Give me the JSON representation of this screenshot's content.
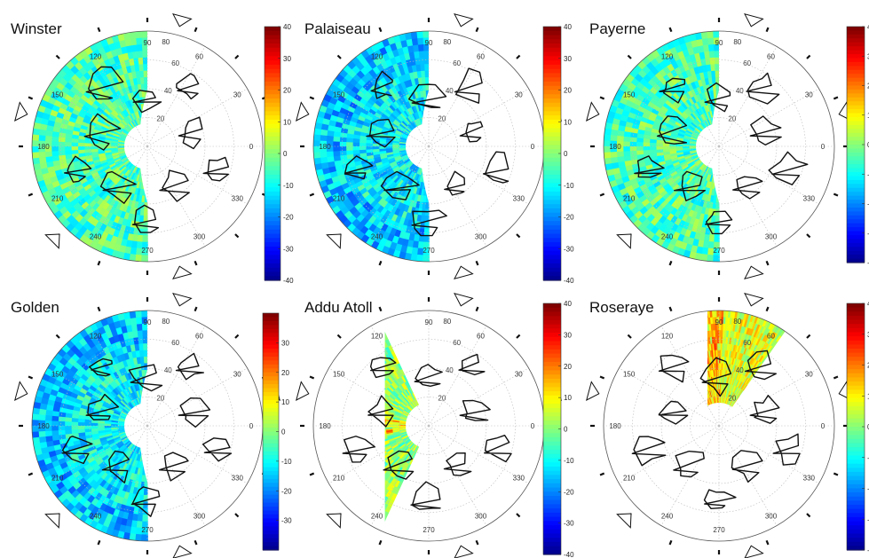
{
  "chart_data": [
    {
      "type": "heatmap",
      "title": "Winster",
      "colorbar": {
        "range": [
          -40,
          40
        ],
        "ticks": [
          -40,
          -30,
          -20,
          -10,
          0,
          10,
          20,
          30,
          40
        ],
        "colormap": "jet"
      },
      "angle_labels": [
        "90",
        "80",
        "60",
        "120",
        "150",
        "30",
        "180",
        "0",
        "210",
        "330",
        "240",
        "300",
        "270"
      ],
      "radial_labels": [
        "20",
        "40",
        "60"
      ],
      "data_sector_deg": [
        90,
        270
      ],
      "colour_tone": "mixed"
    },
    {
      "type": "heatmap",
      "title": "Palaiseau",
      "colorbar": {
        "range": [
          -40,
          40
        ],
        "ticks": [
          -40,
          -30,
          -20,
          -10,
          0,
          10,
          20,
          30,
          40
        ],
        "colormap": "jet"
      },
      "angle_labels": [
        "90",
        "80",
        "60",
        "120",
        "150",
        "30",
        "180",
        "0",
        "210",
        "330",
        "240",
        "300",
        "270"
      ],
      "radial_labels": [
        "20",
        "40",
        "60"
      ],
      "data_sector_deg": [
        90,
        270
      ],
      "colour_tone": "cool"
    },
    {
      "type": "heatmap",
      "title": "Payerne",
      "colorbar": {
        "range": [
          -40,
          40
        ],
        "ticks": [
          -40,
          -30,
          -20,
          -10,
          0,
          10,
          20,
          30,
          40
        ],
        "colormap": "jet"
      },
      "angle_labels": [
        "90",
        "80",
        "60",
        "120",
        "150",
        "30",
        "180",
        "0",
        "210",
        "330",
        "240",
        "300",
        "270"
      ],
      "radial_labels": [
        "20",
        "40",
        "60"
      ],
      "data_sector_deg": [
        90,
        270
      ],
      "colour_tone": "mixed"
    },
    {
      "type": "heatmap",
      "title": "Golden",
      "colorbar": {
        "range": [
          -40,
          40
        ],
        "ticks": [
          -30,
          -20,
          -10,
          0,
          10,
          20,
          30
        ],
        "colormap": "jet"
      },
      "angle_labels": [
        "90",
        "80",
        "60",
        "120",
        "150",
        "30",
        "180",
        "0",
        "210",
        "330",
        "240",
        "300",
        "270"
      ],
      "radial_labels": [
        "20",
        "40",
        "60"
      ],
      "data_sector_deg": [
        90,
        270
      ],
      "colour_tone": "cool"
    },
    {
      "type": "heatmap",
      "title": "Addu Atoll",
      "colorbar": {
        "range": [
          -40,
          40
        ],
        "ticks": [
          -40,
          -30,
          -20,
          -10,
          0,
          10,
          20,
          30,
          40
        ],
        "colormap": "jet"
      },
      "angle_labels": [
        "90",
        "80",
        "60",
        "120",
        "150",
        "30",
        "180",
        "0",
        "210",
        "330",
        "240",
        "300",
        "270"
      ],
      "radial_labels": [
        "20",
        "40",
        "60"
      ],
      "data_sector_deg": [
        115,
        245
      ],
      "colour_tone": "warm"
    },
    {
      "type": "heatmap",
      "title": "Roseraye",
      "colorbar": {
        "range": [
          -40,
          40
        ],
        "ticks": [
          -40,
          -30,
          -20,
          -10,
          0,
          10,
          20,
          30,
          40
        ],
        "colormap": "jet"
      },
      "angle_labels": [
        "90",
        "80",
        "60",
        "120",
        "150",
        "30",
        "180",
        "0",
        "210",
        "330",
        "240",
        "300",
        "270"
      ],
      "radial_labels": [
        "20",
        "40",
        "60"
      ],
      "data_sector_deg": [
        55,
        125
      ],
      "colour_tone": "hot"
    }
  ]
}
